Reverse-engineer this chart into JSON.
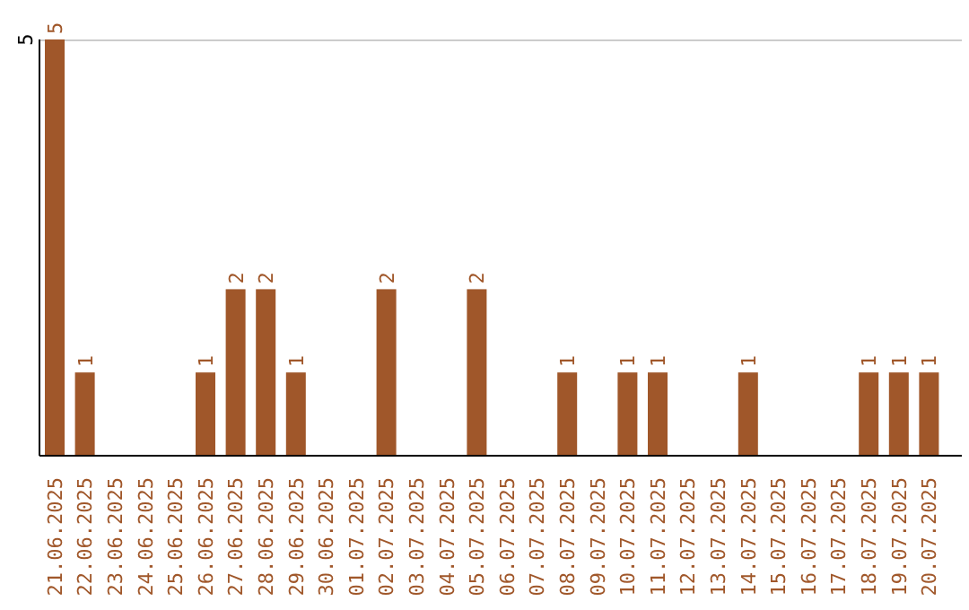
{
  "chart_data": {
    "type": "bar",
    "categories": [
      "21.06.2025",
      "22.06.2025",
      "23.06.2025",
      "24.06.2025",
      "25.06.2025",
      "26.06.2025",
      "27.06.2025",
      "28.06.2025",
      "29.06.2025",
      "30.06.2025",
      "01.07.2025",
      "02.07.2025",
      "03.07.2025",
      "04.07.2025",
      "05.07.2025",
      "06.07.2025",
      "07.07.2025",
      "08.07.2025",
      "09.07.2025",
      "10.07.2025",
      "11.07.2025",
      "12.07.2025",
      "13.07.2025",
      "14.07.2025",
      "15.07.2025",
      "16.07.2025",
      "17.07.2025",
      "18.07.2025",
      "19.07.2025",
      "20.07.2025"
    ],
    "values": [
      5,
      1,
      0,
      0,
      0,
      1,
      2,
      2,
      1,
      0,
      0,
      2,
      0,
      0,
      2,
      0,
      0,
      1,
      0,
      1,
      1,
      0,
      0,
      1,
      0,
      0,
      0,
      1,
      1,
      1
    ],
    "value_labels": [
      "5",
      "1",
      null,
      null,
      null,
      "1",
      "2",
      "2",
      "1",
      null,
      null,
      "2",
      null,
      null,
      "2",
      null,
      null,
      "1",
      null,
      "1",
      "1",
      null,
      null,
      "1",
      null,
      null,
      null,
      "1",
      "1",
      "1"
    ],
    "color": "#a0572a",
    "ylim": [
      0,
      5
    ],
    "yticks": [
      5
    ]
  }
}
